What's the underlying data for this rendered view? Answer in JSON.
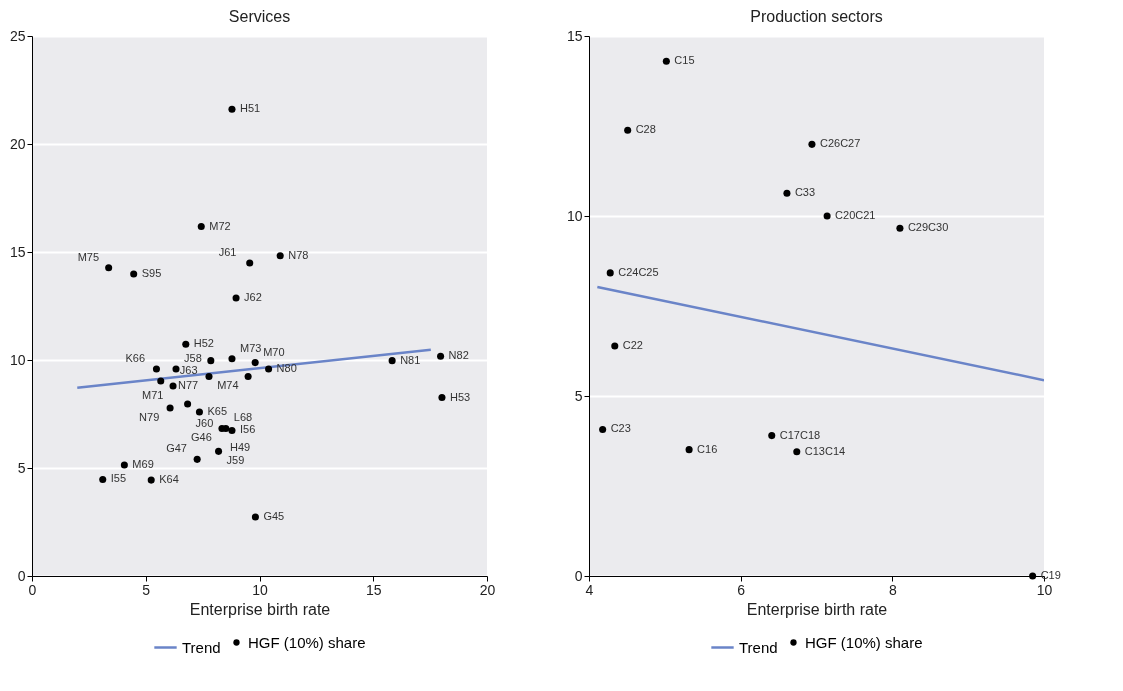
{
  "chart_data": [
    {
      "type": "scatter",
      "title": "Services",
      "xlabel": "Enterprise birth rate",
      "xlim": [
        0,
        20
      ],
      "xticks": [
        0,
        5,
        10,
        15,
        20
      ],
      "ylim": [
        0,
        25
      ],
      "yticks": [
        0,
        5,
        10,
        15,
        20,
        25
      ],
      "grid": "y",
      "legend": "bottom",
      "series": [
        {
          "name": "Trend",
          "type": "line",
          "color": "#6a84c8",
          "x": [
            1.99,
            17.53
          ],
          "values": [
            8.72,
            10.47
          ]
        },
        {
          "name": "HGF (10%) share",
          "type": "scatter",
          "marker": "circle",
          "color": "#000000",
          "x": [
            8.79,
            7.44,
            3.37,
            4.47,
            9.57,
            10.91,
            8.97,
            6.76,
            5.47,
            6.33,
            7.86,
            8.79,
            9.81,
            10.4,
            9.5,
            7.78,
            6.2,
            5.66,
            6.84,
            6.07,
            7.36,
            8.35,
            8.52,
            8.79,
            8.45,
            8.2,
            7.26,
            4.06,
            3.11,
            5.24,
            15.83,
            17.96,
            18.02,
            9.82
          ],
          "values": [
            21.61,
            16.18,
            14.27,
            13.98,
            14.49,
            14.83,
            12.87,
            10.73,
            9.58,
            9.58,
            9.97,
            10.06,
            9.88,
            9.58,
            9.24,
            9.24,
            8.8,
            9.03,
            7.96,
            7.78,
            7.59,
            6.83,
            6.83,
            6.74,
            null,
            5.77,
            5.4,
            5.14,
            4.47,
            4.44,
            9.97,
            10.17,
            8.26,
            2.73
          ]
        }
      ],
      "annotations": [
        {
          "text": "H51",
          "x": 8.79,
          "y": 21.61
        },
        {
          "text": "M72",
          "x": 7.44,
          "y": 16.18
        },
        {
          "text": "M75",
          "x": 3.37,
          "y": 14.27
        },
        {
          "text": "S95",
          "x": 4.47,
          "y": 13.98
        },
        {
          "text": "J61",
          "x": 9.57,
          "y": 14.49
        },
        {
          "text": "N78",
          "x": 10.91,
          "y": 14.83
        },
        {
          "text": "J62",
          "x": 8.97,
          "y": 12.87
        },
        {
          "text": "H52",
          "x": 6.76,
          "y": 10.73
        },
        {
          "text": "K66",
          "x": 5.47,
          "y": 9.58
        },
        {
          "text": "J58",
          "x": 6.33,
          "y": 9.58
        },
        {
          "text": "J63",
          "x": 7.86,
          "y": 9.97
        },
        {
          "text": "M73",
          "x": 8.79,
          "y": 10.06
        },
        {
          "text": "M70",
          "x": 9.81,
          "y": 9.88
        },
        {
          "text": "N80",
          "x": 10.4,
          "y": 9.58
        },
        {
          "text": "M74",
          "x": 9.5,
          "y": 9.24
        },
        {
          "text": "N77",
          "x": 7.78,
          "y": 9.24
        },
        {
          "text": "M71",
          "x": 6.2,
          "y": 8.8
        },
        {
          "text": "J60",
          "x": 6.84,
          "y": 7.96
        },
        {
          "text": "N79",
          "x": 6.07,
          "y": 7.78
        },
        {
          "text": "K65",
          "x": 7.36,
          "y": 7.59
        },
        {
          "text": "G46",
          "x": 8.35,
          "y": 6.83
        },
        {
          "text": "L68",
          "x": 8.52,
          "y": 6.83
        },
        {
          "text": "I56",
          "x": 8.79,
          "y": 6.74
        },
        {
          "text": "H49",
          "x": 8.35,
          "y": 6.83
        },
        {
          "text": "J59",
          "x": 8.2,
          "y": 5.77
        },
        {
          "text": "G47",
          "x": 7.26,
          "y": 5.4
        },
        {
          "text": "M69",
          "x": 4.06,
          "y": 5.14
        },
        {
          "text": "I55",
          "x": 3.11,
          "y": 4.47
        },
        {
          "text": "K64",
          "x": 5.24,
          "y": 4.44
        },
        {
          "text": "N81",
          "x": 15.83,
          "y": 9.97
        },
        {
          "text": "N82",
          "x": 17.96,
          "y": 10.17
        },
        {
          "text": "H53",
          "x": 18.02,
          "y": 8.26
        },
        {
          "text": "G45",
          "x": 9.82,
          "y": 2.73
        }
      ]
    },
    {
      "type": "scatter",
      "title": "Production sectors",
      "xlabel": "Enterprise birth rate",
      "xlim": [
        4,
        10
      ],
      "xticks": [
        4,
        6,
        8,
        10
      ],
      "ylim": [
        0,
        15
      ],
      "yticks": [
        0,
        5,
        10,
        15
      ],
      "grid": "y",
      "legend": "bottom",
      "series": [
        {
          "name": "Trend",
          "type": "line",
          "color": "#6a84c8",
          "x": [
            4.11,
            10
          ],
          "values": [
            8.03,
            5.44
          ]
        },
        {
          "name": "HGF (10%) share",
          "type": "scatter",
          "marker": "circle",
          "color": "#000000",
          "x": [
            5.02,
            4.51,
            6.94,
            6.61,
            7.14,
            8.1,
            4.28,
            4.34,
            4.18,
            5.32,
            6.41,
            6.74,
            9.85
          ],
          "values": [
            14.3,
            12.38,
            11.99,
            10.63,
            10.0,
            9.66,
            8.42,
            6.39,
            4.07,
            3.51,
            3.9,
            3.45,
            0
          ]
        }
      ],
      "annotations": [
        {
          "text": "C15",
          "x": 5.02,
          "y": 14.3
        },
        {
          "text": "C28",
          "x": 4.51,
          "y": 12.38
        },
        {
          "text": "C26C27",
          "x": 6.94,
          "y": 11.99
        },
        {
          "text": "C33",
          "x": 6.61,
          "y": 10.63
        },
        {
          "text": "C20C21",
          "x": 7.14,
          "y": 10.0
        },
        {
          "text": "C29C30",
          "x": 8.1,
          "y": 9.66
        },
        {
          "text": "C24C25",
          "x": 4.28,
          "y": 8.42
        },
        {
          "text": "C22",
          "x": 4.34,
          "y": 6.39
        },
        {
          "text": "C23",
          "x": 4.18,
          "y": 4.07
        },
        {
          "text": "C16",
          "x": 5.32,
          "y": 3.51
        },
        {
          "text": "C17C18",
          "x": 6.41,
          "y": 3.9
        },
        {
          "text": "C13C14",
          "x": 6.74,
          "y": 3.45
        },
        {
          "text": "C19",
          "x": 9.85,
          "y": 0
        }
      ]
    }
  ]
}
